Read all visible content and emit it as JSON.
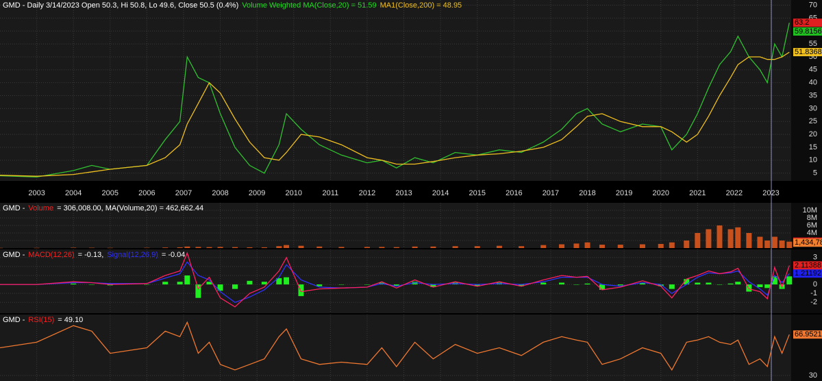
{
  "chart_data": [
    {
      "type": "line",
      "header": [
        {
          "text": "GMD - Daily 3/14/2023 Open 50.3, Hi 50.8, Lo 49.6, Close 50.5 (0.4%)",
          "color": "#ffffff"
        },
        {
          "text": "Volume Weighted MA(Close,20) = 51.59",
          "color": "#22dd22"
        },
        {
          "text": "MA1(Close,200) = 48.95",
          "color": "#f0c020"
        }
      ],
      "x": [
        2002.0,
        2003.0,
        2004.0,
        2004.5,
        2005.0,
        2006.0,
        2006.5,
        2006.9,
        2007.1,
        2007.4,
        2007.7,
        2008.0,
        2008.4,
        2008.8,
        2009.2,
        2009.6,
        2009.8,
        2010.2,
        2010.7,
        2011.3,
        2012.0,
        2012.4,
        2012.8,
        2013.3,
        2013.8,
        2014.4,
        2015.0,
        2015.6,
        2016.2,
        2016.8,
        2017.3,
        2017.7,
        2018.0,
        2018.4,
        2018.9,
        2019.5,
        2020.0,
        2020.3,
        2020.7,
        2021.0,
        2021.3,
        2021.6,
        2021.9,
        2022.1,
        2022.4,
        2022.7,
        2022.9,
        2023.1,
        2023.3,
        2023.5
      ],
      "series": [
        {
          "color": "#30c030",
          "values": [
            4,
            3.5,
            6,
            8,
            6.5,
            8,
            18,
            25,
            50,
            42,
            40,
            28,
            15,
            8,
            5,
            16,
            28,
            22,
            16,
            12,
            9,
            10,
            7,
            11,
            9,
            13,
            12,
            14,
            13,
            17,
            22,
            28,
            30,
            24,
            21,
            24,
            23,
            14,
            20,
            28,
            38,
            47,
            52,
            58,
            50,
            45,
            40,
            55,
            50,
            63.2
          ]
        },
        {
          "color": "#f0c020",
          "values": [
            4.2,
            3.8,
            4.5,
            5.5,
            6.5,
            8,
            11,
            16,
            24,
            32,
            40,
            36,
            26,
            17,
            11,
            10,
            13,
            20,
            19,
            16,
            11,
            10,
            8.5,
            8.5,
            9.5,
            11,
            12,
            12.5,
            13.5,
            15,
            18,
            23,
            27,
            28,
            25,
            23,
            23,
            21,
            17,
            20,
            27,
            35,
            42,
            47,
            50,
            50,
            49,
            49,
            50,
            51.8
          ]
        }
      ],
      "xlim": [
        2002,
        2023.55
      ],
      "xticks": [
        2003,
        2004,
        2005,
        2006,
        2007,
        2008,
        2009,
        2010,
        2011,
        2012,
        2013,
        2014,
        2015,
        2016,
        2017,
        2018,
        2019,
        2020,
        2021,
        2022,
        2023
      ],
      "ylim": [
        2,
        72
      ],
      "yticks": [
        5,
        10,
        15,
        20,
        25,
        30,
        35,
        40,
        45,
        50,
        55,
        60,
        65,
        70
      ],
      "last_labels": [
        {
          "value": 63.2,
          "color": "#e02020"
        },
        {
          "value": 59.8156,
          "color": "#20c020"
        },
        {
          "value": 51.8368,
          "color": "#f0c020"
        }
      ]
    },
    {
      "type": "bar",
      "header": [
        {
          "text": "GMD -",
          "color": "#ffffff"
        },
        {
          "text": "Volume",
          "color": "#ff2020"
        },
        {
          "text": "= 306,008.00, MA(Volume,20) = 462,662.44",
          "color": "#ffffff"
        }
      ],
      "x": [
        2002.0,
        2003.0,
        2004.0,
        2004.5,
        2005.0,
        2006.0,
        2006.5,
        2006.9,
        2007.1,
        2007.4,
        2007.7,
        2008.0,
        2008.4,
        2008.8,
        2009.2,
        2009.6,
        2009.8,
        2010.2,
        2010.7,
        2011.3,
        2012.0,
        2012.4,
        2012.8,
        2013.3,
        2013.8,
        2014.4,
        2015.0,
        2015.6,
        2016.2,
        2016.8,
        2017.3,
        2017.7,
        2018.0,
        2018.4,
        2018.9,
        2019.5,
        2020.0,
        2020.3,
        2020.7,
        2021.0,
        2021.3,
        2021.6,
        2021.9,
        2022.1,
        2022.4,
        2022.7,
        2022.9,
        2023.1,
        2023.3,
        2023.5
      ],
      "series": [
        {
          "color": "#c8501c",
          "values": [
            50000,
            50000,
            100000,
            80000,
            60000,
            80000,
            150000,
            200000,
            400000,
            300000,
            250000,
            300000,
            250000,
            200000,
            200000,
            500000,
            800000,
            600000,
            400000,
            300000,
            300000,
            300000,
            250000,
            400000,
            400000,
            500000,
            500000,
            600000,
            500000,
            800000,
            1000000,
            1200000,
            1500000,
            900000,
            900000,
            1000000,
            1100000,
            1500000,
            2000000,
            4000000,
            5000000,
            6000000,
            5000000,
            5500000,
            4000000,
            3000000,
            2000000,
            3000000,
            2000000,
            1704300
          ]
        }
      ],
      "xlim": [
        2002,
        2023.55
      ],
      "ylim": [
        0,
        12000000
      ],
      "yticks": [
        {
          "value": 2000000,
          "label": "2M"
        },
        {
          "value": 4000000,
          "label": "4M"
        },
        {
          "value": 6000000,
          "label": "6M"
        },
        {
          "value": 8000000,
          "label": "8M"
        },
        {
          "value": 10000000,
          "label": "10M"
        }
      ],
      "last_labels": [
        {
          "value": 1704300,
          "label": "1,704,300",
          "color": "#e02020"
        },
        {
          "value": 1434780,
          "label": "1,434,780",
          "color": "#f08030"
        }
      ]
    },
    {
      "type": "line",
      "header": [
        {
          "text": "GMD -",
          "color": "#ffffff"
        },
        {
          "text": "MACD(12,26)",
          "color": "#ff2020"
        },
        {
          "text": "= -0.13,",
          "color": "#ffffff"
        },
        {
          "text": "Signal(12,26,9)",
          "color": "#3030ff"
        },
        {
          "text": "= -0.04",
          "color": "#ffffff"
        }
      ],
      "x": [
        2002.0,
        2003.0,
        2004.0,
        2004.5,
        2005.0,
        2006.0,
        2006.5,
        2006.9,
        2007.1,
        2007.4,
        2007.7,
        2008.0,
        2008.4,
        2008.8,
        2009.2,
        2009.6,
        2009.8,
        2010.2,
        2010.7,
        2011.3,
        2012.0,
        2012.4,
        2012.8,
        2013.3,
        2013.8,
        2014.4,
        2015.0,
        2015.6,
        2016.2,
        2016.8,
        2017.3,
        2017.7,
        2018.0,
        2018.4,
        2018.9,
        2019.5,
        2020.0,
        2020.3,
        2020.7,
        2021.0,
        2021.3,
        2021.6,
        2021.9,
        2022.1,
        2022.4,
        2022.7,
        2022.9,
        2023.1,
        2023.3,
        2023.5
      ],
      "series": [
        {
          "type": "bar",
          "color": "#20ee20",
          "values": [
            0,
            0,
            0.1,
            0,
            -0.1,
            0,
            0.3,
            0.3,
            1,
            -1.5,
            0.3,
            -0.7,
            -0.5,
            0.4,
            0.3,
            0.7,
            0.8,
            -1.3,
            -0.2,
            0,
            0,
            0.2,
            -0.2,
            0.3,
            -0.3,
            0.2,
            -0.2,
            0.2,
            -0.2,
            0.2,
            0.2,
            0,
            0.1,
            -0.6,
            -0.1,
            0.2,
            -0.2,
            -0.5,
            0.6,
            0.2,
            0.2,
            0,
            0.1,
            0.3,
            -0.8,
            -0.3,
            -0.4,
            0.9,
            -0.5,
            0.9
          ]
        },
        {
          "type": "line",
          "color": "#3030ff",
          "values": [
            0,
            0,
            0.2,
            0.2,
            0.1,
            0.1,
            0.7,
            1.2,
            2.5,
            1,
            0.5,
            -0.8,
            -2,
            -1.4,
            -0.6,
            0.8,
            2.2,
            0.5,
            -0.3,
            -0.4,
            -0.3,
            0.1,
            -0.2,
            0.2,
            0,
            0.1,
            0,
            0.1,
            0,
            0.3,
            0.8,
            0.8,
            0.8,
            0,
            -0.2,
            0.2,
            0,
            -1,
            0,
            0.8,
            1.3,
            1.2,
            1.3,
            1.5,
            0.3,
            -0.5,
            -1.2,
            1,
            0.2,
            1.21192
          ]
        },
        {
          "type": "line",
          "color": "#ff2060",
          "values": [
            0,
            0,
            0.3,
            0.2,
            0,
            0.1,
            1,
            1.5,
            3.5,
            -0.5,
            0.8,
            -1.5,
            -2.5,
            -1,
            -0.3,
            1.5,
            3,
            -0.8,
            -0.5,
            -0.4,
            -0.3,
            0.3,
            -0.4,
            0.5,
            -0.3,
            0.3,
            -0.2,
            0.3,
            -0.2,
            0.5,
            1,
            0.8,
            0.9,
            -0.6,
            -0.3,
            0.4,
            -0.2,
            -1.5,
            0.6,
            1,
            1.5,
            1.2,
            1.4,
            1.8,
            -0.5,
            -0.8,
            -1.6,
            1.9,
            -0.3,
            2.11388
          ]
        }
      ],
      "xlim": [
        2002,
        2023.55
      ],
      "ylim": [
        -3.2,
        3.9
      ],
      "yticks": [
        -2,
        -1,
        0,
        1,
        2,
        3
      ],
      "last_labels": [
        {
          "value": 2.11388,
          "color": "#e02020"
        },
        {
          "value": 1.21192,
          "color": "#2020ee"
        }
      ]
    },
    {
      "type": "line",
      "header": [
        {
          "text": "GMD -",
          "color": "#ffffff"
        },
        {
          "text": "RSI(15)",
          "color": "#ff2020"
        },
        {
          "text": "= 49.10",
          "color": "#ffffff"
        }
      ],
      "x": [
        2002.0,
        2003.0,
        2004.0,
        2004.5,
        2005.0,
        2006.0,
        2006.5,
        2006.9,
        2007.1,
        2007.4,
        2007.7,
        2008.0,
        2008.4,
        2008.8,
        2009.2,
        2009.6,
        2009.8,
        2010.2,
        2010.7,
        2011.3,
        2012.0,
        2012.4,
        2012.8,
        2013.3,
        2013.8,
        2014.4,
        2015.0,
        2015.6,
        2016.2,
        2016.8,
        2017.3,
        2017.7,
        2018.0,
        2018.4,
        2018.9,
        2019.5,
        2020.0,
        2020.3,
        2020.7,
        2021.0,
        2021.3,
        2021.6,
        2021.9,
        2022.1,
        2022.4,
        2022.7,
        2022.9,
        2023.1,
        2023.3,
        2023.5
      ],
      "series": [
        {
          "color": "#f07830",
          "values": [
            55,
            60,
            75,
            70,
            50,
            55,
            70,
            65,
            78,
            50,
            60,
            40,
            35,
            40,
            45,
            65,
            72,
            45,
            40,
            42,
            40,
            55,
            38,
            60,
            45,
            58,
            50,
            55,
            48,
            60,
            65,
            62,
            60,
            40,
            45,
            55,
            50,
            35,
            60,
            62,
            65,
            60,
            58,
            62,
            40,
            45,
            38,
            65,
            50,
            66.9521
          ]
        }
      ],
      "xlim": [
        2002,
        2023.55
      ],
      "ylim": [
        25,
        85
      ],
      "yticks": [
        30
      ],
      "last_labels": [
        {
          "value": 66.9521,
          "color": "#f07830"
        }
      ]
    }
  ]
}
